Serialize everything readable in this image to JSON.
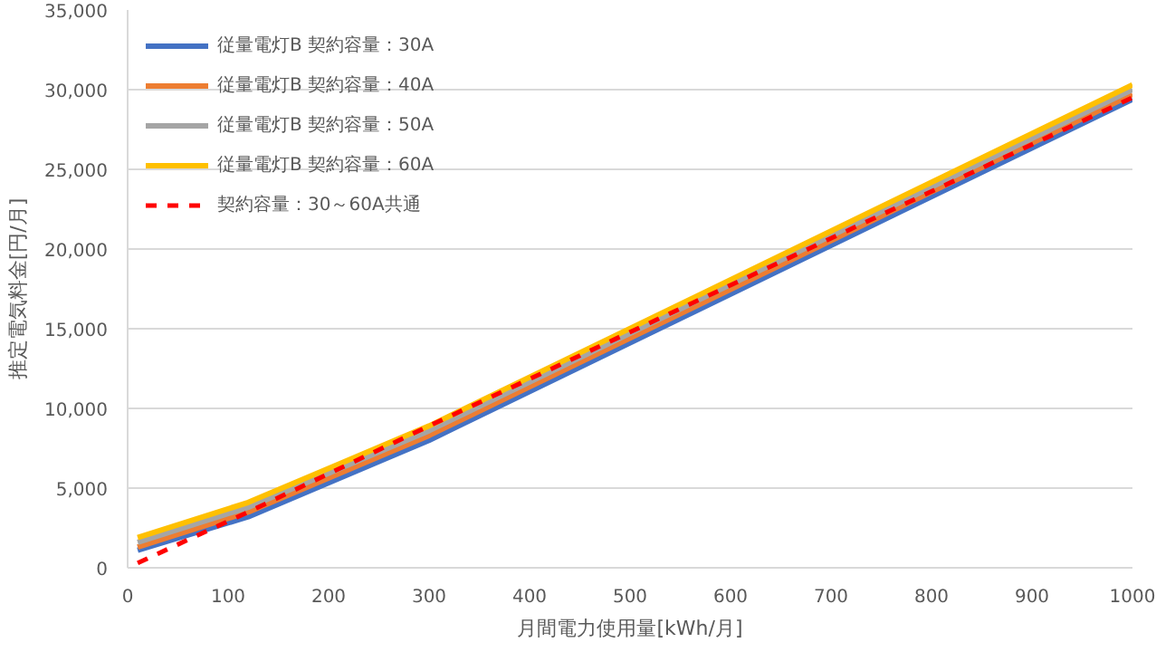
{
  "chart_data": {
    "type": "line",
    "xlabel": "月間電力使用量[kWh/月]",
    "ylabel": "推定電気料金[円/月]",
    "xlim": [
      0,
      1000
    ],
    "xticks": [
      0,
      100,
      200,
      300,
      400,
      500,
      600,
      700,
      800,
      900,
      1000
    ],
    "ylim": [
      0,
      35000
    ],
    "yticks": [
      {
        "value": 0,
        "label": "0"
      },
      {
        "value": 5000,
        "label": "5,000"
      },
      {
        "value": 10000,
        "label": "10,000"
      },
      {
        "value": 15000,
        "label": "15,000"
      },
      {
        "value": 20000,
        "label": "20,000"
      },
      {
        "value": 25000,
        "label": "25,000"
      },
      {
        "value": 30000,
        "label": "30,000"
      },
      {
        "value": 35000,
        "label": "35,000"
      }
    ],
    "grid": "y",
    "legend": "top left",
    "marker": "none",
    "x": [
      10,
      120,
      300,
      1000
    ],
    "series": [
      {
        "name": "従量電灯B 契約容量：30A",
        "color": "#4472c4",
        "values": [
          1100,
          3200,
          8000,
          29400
        ]
      },
      {
        "name": "従量電灯B 契約容量：40A",
        "color": "#ed7d31",
        "values": [
          1300,
          3500,
          8300,
          29700
        ]
      },
      {
        "name": "従量電灯B 契約容量：50A",
        "color": "#a5a5a5",
        "values": [
          1600,
          3800,
          8600,
          30000
        ]
      },
      {
        "name": "従量電灯B 契約容量：60A",
        "color": "#ffc000",
        "values": [
          1900,
          4100,
          8900,
          30300
        ]
      },
      {
        "name": "契約容量：30～60A共通",
        "color": "#ff0000",
        "line_style": "dashed",
        "values": [
          300,
          3500,
          8900,
          29500
        ]
      }
    ]
  }
}
